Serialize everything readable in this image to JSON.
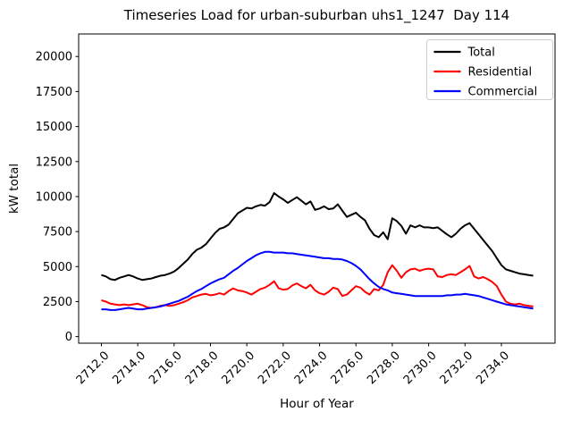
{
  "chart_data": {
    "type": "line",
    "title": "Timeseries Load for urban-suburban uhs1_1247  Day 114",
    "xlabel": "Hour of Year",
    "ylabel": "kW total",
    "grid": false,
    "legend_position": "upper right",
    "xlim": [
      2710.75,
      2736.95
    ],
    "ylim": [
      -470,
      21610
    ],
    "xticks": [
      2712,
      2714,
      2716,
      2718,
      2720,
      2722,
      2724,
      2726,
      2728,
      2730,
      2732,
      2734
    ],
    "xtick_labels": [
      "2712.0",
      "2714.0",
      "2716.0",
      "2718.0",
      "2720.0",
      "2722.0",
      "2724.0",
      "2726.0",
      "2728.0",
      "2730.0",
      "2732.0",
      "2734.0"
    ],
    "yticks": [
      0,
      2500,
      5000,
      7500,
      10000,
      12500,
      15000,
      17500,
      20000
    ],
    "ytick_labels": [
      "0",
      "2500",
      "5000",
      "7500",
      "10000",
      "12500",
      "15000",
      "17500",
      "20000"
    ],
    "x": [
      2712.0,
      2712.25,
      2712.5,
      2712.75,
      2713.0,
      2713.25,
      2713.5,
      2713.75,
      2714.0,
      2714.25,
      2714.5,
      2714.75,
      2715.0,
      2715.25,
      2715.5,
      2715.75,
      2716.0,
      2716.25,
      2716.5,
      2716.75,
      2717.0,
      2717.25,
      2717.5,
      2717.75,
      2718.0,
      2718.25,
      2718.5,
      2718.75,
      2719.0,
      2719.25,
      2719.5,
      2719.75,
      2720.0,
      2720.25,
      2720.5,
      2720.75,
      2721.0,
      2721.25,
      2721.5,
      2721.75,
      2722.0,
      2722.25,
      2722.5,
      2722.75,
      2723.0,
      2723.25,
      2723.5,
      2723.75,
      2724.0,
      2724.25,
      2724.5,
      2724.75,
      2725.0,
      2725.25,
      2725.5,
      2725.75,
      2726.0,
      2726.25,
      2726.5,
      2726.75,
      2727.0,
      2727.25,
      2727.5,
      2727.75,
      2728.0,
      2728.25,
      2728.5,
      2728.75,
      2729.0,
      2729.25,
      2729.5,
      2729.75,
      2730.0,
      2730.25,
      2730.5,
      2730.75,
      2731.0,
      2731.25,
      2731.5,
      2731.75,
      2732.0,
      2732.25,
      2732.5,
      2732.75,
      2733.0,
      2733.25,
      2733.5,
      2733.75,
      2734.0,
      2734.25,
      2734.5,
      2734.75,
      2735.0,
      2735.25,
      2735.5,
      2735.75
    ],
    "series": [
      {
        "name": "Total",
        "color": "#000000",
        "values": [
          4400,
          4300,
          4100,
          4050,
          4200,
          4300,
          4400,
          4300,
          4150,
          4050,
          4100,
          4150,
          4250,
          4350,
          4400,
          4500,
          4650,
          4900,
          5200,
          5500,
          5900,
          6200,
          6350,
          6600,
          7000,
          7400,
          7700,
          7800,
          8000,
          8400,
          8800,
          9000,
          9200,
          9150,
          9300,
          9400,
          9350,
          9600,
          10250,
          10000,
          9800,
          9550,
          9750,
          9950,
          9700,
          9450,
          9650,
          9050,
          9150,
          9300,
          9100,
          9150,
          9450,
          9000,
          8550,
          8700,
          8850,
          8550,
          8300,
          7700,
          7250,
          7100,
          7450,
          6950,
          8450,
          8250,
          7900,
          7350,
          7950,
          7800,
          7950,
          7800,
          7800,
          7750,
          7800,
          7550,
          7300,
          7100,
          7350,
          7700,
          7950,
          8100,
          7700,
          7300,
          6900,
          6500,
          6100,
          5600,
          5100,
          4800,
          4700,
          4600,
          4500,
          4450,
          4400,
          4350
        ]
      },
      {
        "name": "Residential",
        "color": "#ff0000",
        "values": [
          2600,
          2500,
          2350,
          2300,
          2250,
          2300,
          2250,
          2300,
          2350,
          2250,
          2100,
          2050,
          2100,
          2200,
          2250,
          2200,
          2250,
          2350,
          2450,
          2600,
          2800,
          2900,
          3000,
          3050,
          2950,
          3000,
          3100,
          3000,
          3250,
          3450,
          3300,
          3250,
          3150,
          3000,
          3200,
          3400,
          3500,
          3700,
          3950,
          3450,
          3350,
          3400,
          3650,
          3800,
          3600,
          3450,
          3700,
          3300,
          3100,
          3000,
          3200,
          3500,
          3400,
          2900,
          3000,
          3300,
          3600,
          3500,
          3200,
          3000,
          3400,
          3300,
          3700,
          4600,
          5100,
          4700,
          4200,
          4600,
          4800,
          4850,
          4700,
          4800,
          4850,
          4800,
          4300,
          4250,
          4400,
          4450,
          4400,
          4600,
          4800,
          5050,
          4300,
          4150,
          4250,
          4100,
          3900,
          3600,
          3000,
          2500,
          2350,
          2300,
          2350,
          2250,
          2200,
          2150
        ]
      },
      {
        "name": "Commercial",
        "color": "#0000ff",
        "values": [
          1950,
          1950,
          1900,
          1900,
          1950,
          2000,
          2050,
          2000,
          1950,
          1950,
          2000,
          2050,
          2100,
          2150,
          2250,
          2350,
          2450,
          2550,
          2700,
          2850,
          3050,
          3250,
          3400,
          3600,
          3800,
          3950,
          4100,
          4200,
          4450,
          4700,
          4900,
          5150,
          5400,
          5600,
          5800,
          5950,
          6050,
          6050,
          6000,
          6000,
          6000,
          5950,
          5950,
          5900,
          5850,
          5800,
          5750,
          5700,
          5650,
          5600,
          5600,
          5550,
          5550,
          5500,
          5400,
          5250,
          5050,
          4800,
          4450,
          4100,
          3800,
          3550,
          3400,
          3300,
          3150,
          3100,
          3050,
          3000,
          2950,
          2900,
          2900,
          2900,
          2900,
          2900,
          2900,
          2900,
          2950,
          2950,
          3000,
          3000,
          3050,
          3000,
          2950,
          2900,
          2800,
          2700,
          2600,
          2500,
          2400,
          2300,
          2250,
          2200,
          2150,
          2100,
          2050,
          2000
        ]
      }
    ]
  },
  "style": {
    "spine_color": "#000000",
    "legend_border_color": "#cccccc",
    "legend_bg_color": "#ffffff",
    "text_color": "#000000"
  }
}
